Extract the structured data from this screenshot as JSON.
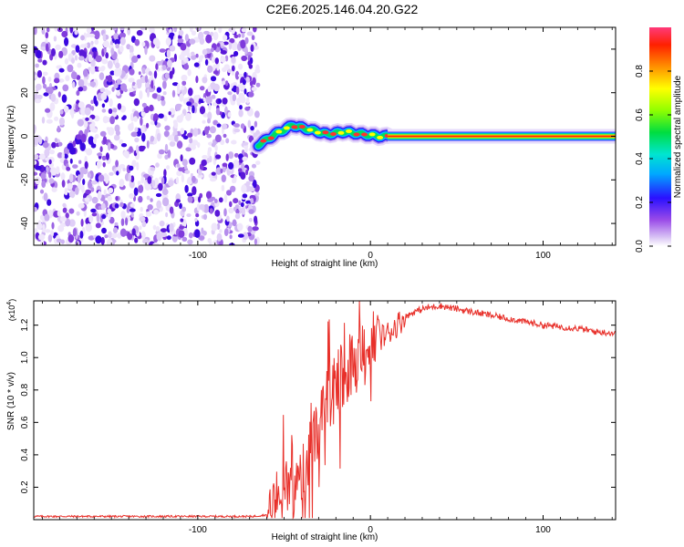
{
  "title": "C2E6.2025.146.04.20.G22",
  "chart_data": [
    {
      "type": "heatmap",
      "name": "spectrogram",
      "xlabel": "Height of straight line (km)",
      "ylabel": "Frequency (Hz)",
      "xlim": [
        -195,
        142
      ],
      "ylim": [
        -50,
        50
      ],
      "xticks": [
        -100,
        0,
        100
      ],
      "yticks": [
        -40,
        -20,
        0,
        20,
        40
      ],
      "colorbar": {
        "label": "Normalized spectral amplitude",
        "range": [
          0,
          1
        ],
        "ticks": [
          "0.0",
          "0.2",
          "0.4",
          "0.6",
          "0.8"
        ],
        "colormap": [
          "#ffffff",
          "#c8a8f0",
          "#8a2be2",
          "#1a00ff",
          "#00c8ff",
          "#00e070",
          "#80ff00",
          "#ffff00",
          "#ff8000",
          "#ff0000"
        ]
      },
      "regions": [
        {
          "kind": "noise",
          "x_range": [
            -195,
            -65
          ],
          "y_range": [
            -50,
            50
          ],
          "amplitude_range": [
            0.0,
            0.2
          ]
        },
        {
          "kind": "signal_wobble",
          "x_range": [
            -65,
            10
          ],
          "center_freq": [
            [
              -65,
              -4
            ],
            [
              -55,
              1
            ],
            [
              -45,
              5
            ],
            [
              -35,
              3
            ],
            [
              -25,
              1
            ],
            [
              -15,
              2
            ],
            [
              -5,
              1
            ],
            [
              5,
              0
            ],
            [
              10,
              0
            ]
          ],
          "amplitude": 0.85
        },
        {
          "kind": "signal_line",
          "x_range": [
            10,
            142
          ],
          "center_freq": 0,
          "amplitude": 1.0
        }
      ]
    },
    {
      "type": "line",
      "name": "snr",
      "xlabel": "Height of straight line (km)",
      "ylabel": "SNR (10 * v/v)",
      "y_multiplier": "(x10^4)",
      "xlim": [
        -195,
        142
      ],
      "ylim": [
        0,
        1.35
      ],
      "xticks": [
        -100,
        0,
        100
      ],
      "yticks": [
        "0.2",
        "0.4",
        "0.6",
        "0.8",
        "1.0",
        "1.2"
      ],
      "series": [
        {
          "color": "#e8302a",
          "x": [
            -195,
            -180,
            -160,
            -140,
            -120,
            -100,
            -80,
            -68,
            -60,
            -55,
            -50,
            -48,
            -45,
            -40,
            -35,
            -30,
            -25,
            -20,
            -15,
            -10,
            -5,
            0,
            5,
            10,
            15,
            20,
            25,
            30,
            35,
            40,
            45,
            50,
            60,
            70,
            80,
            90,
            100,
            110,
            120,
            130,
            142
          ],
          "y": [
            0.02,
            0.02,
            0.02,
            0.02,
            0.02,
            0.02,
            0.02,
            0.02,
            0.03,
            0.1,
            0.3,
            0.2,
            0.15,
            0.28,
            0.42,
            0.58,
            0.72,
            0.8,
            0.88,
            0.95,
            1.02,
            1.1,
            1.12,
            1.15,
            1.2,
            1.25,
            1.28,
            1.3,
            1.31,
            1.32,
            1.31,
            1.3,
            1.28,
            1.26,
            1.24,
            1.22,
            1.2,
            1.19,
            1.18,
            1.16,
            1.15
          ]
        }
      ]
    }
  ]
}
